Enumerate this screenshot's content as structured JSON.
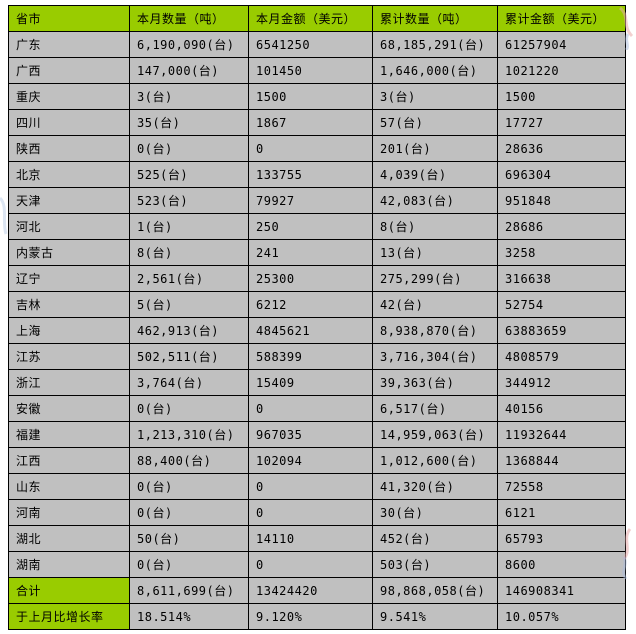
{
  "colors": {
    "header_bg": "#99cc00",
    "row_bg": "#c0c0c0",
    "border": "#000000",
    "text": "#000000"
  },
  "table": {
    "columns": [
      "省市",
      "本月数量（吨）",
      "本月金额（美元）",
      "累计数量（吨）",
      "累计金额（美元）"
    ],
    "rows": [
      [
        "广东",
        "6,190,090(台)",
        "6541250",
        "68,185,291(台)",
        "61257904"
      ],
      [
        "广西",
        "147,000(台)",
        "101450",
        "1,646,000(台)",
        "1021220"
      ],
      [
        "重庆",
        "3(台)",
        "1500",
        "3(台)",
        "1500"
      ],
      [
        "四川",
        "35(台)",
        "1867",
        "57(台)",
        "17727"
      ],
      [
        "陕西",
        "0(台)",
        "0",
        "201(台)",
        "28636"
      ],
      [
        "北京",
        "525(台)",
        "133755",
        "4,039(台)",
        "696304"
      ],
      [
        "天津",
        "523(台)",
        "79927",
        "42,083(台)",
        "951848"
      ],
      [
        "河北",
        "1(台)",
        "250",
        "8(台)",
        "28686"
      ],
      [
        "内蒙古",
        "8(台)",
        "241",
        "13(台)",
        "3258"
      ],
      [
        "辽宁",
        "2,561(台)",
        "25300",
        "275,299(台)",
        "316638"
      ],
      [
        "吉林",
        "5(台)",
        "6212",
        "42(台)",
        "52754"
      ],
      [
        "上海",
        "462,913(台)",
        "4845621",
        "8,938,870(台)",
        "63883659"
      ],
      [
        "江苏",
        "502,511(台)",
        "588399",
        "3,716,304(台)",
        "4808579"
      ],
      [
        "浙江",
        "3,764(台)",
        "15409",
        "39,363(台)",
        "344912"
      ],
      [
        "安徽",
        "0(台)",
        "0",
        "6,517(台)",
        "40156"
      ],
      [
        "福建",
        "1,213,310(台)",
        "967035",
        "14,959,063(台)",
        "11932644"
      ],
      [
        "江西",
        "88,400(台)",
        "102094",
        "1,012,600(台)",
        "1368844"
      ],
      [
        "山东",
        "0(台)",
        "0",
        "41,320(台)",
        "72558"
      ],
      [
        "河南",
        "0(台)",
        "0",
        "30(台)",
        "6121"
      ],
      [
        "湖北",
        "50(台)",
        "14110",
        "452(台)",
        "65793"
      ],
      [
        "湖南",
        "0(台)",
        "0",
        "503(台)",
        "8600"
      ]
    ],
    "total_row": [
      "合计",
      "8,611,699(台)",
      "13424420",
      "98,868,058(台)",
      "146908341"
    ],
    "growth_row": [
      "于上月比增长率",
      "18.514%",
      "9.120%",
      "9.541%",
      "10.057%"
    ]
  },
  "chart_data": {
    "type": "table",
    "title": "",
    "columns": [
      "省市",
      "本月数量（吨）",
      "本月金额（美元）",
      "累计数量（吨）",
      "累计金额（美元）"
    ],
    "provinces": [
      "广东",
      "广西",
      "重庆",
      "四川",
      "陕西",
      "北京",
      "天津",
      "河北",
      "内蒙古",
      "辽宁",
      "吉林",
      "上海",
      "江苏",
      "浙江",
      "安徽",
      "福建",
      "江西",
      "山东",
      "河南",
      "湖北",
      "湖南"
    ],
    "series": [
      {
        "name": "本月数量(台)",
        "values": [
          6190090,
          147000,
          3,
          35,
          0,
          525,
          523,
          1,
          8,
          2561,
          5,
          462913,
          502511,
          3764,
          0,
          1213310,
          88400,
          0,
          0,
          50,
          0
        ]
      },
      {
        "name": "本月金额(美元)",
        "values": [
          6541250,
          101450,
          1500,
          1867,
          0,
          133755,
          79927,
          250,
          241,
          25300,
          6212,
          4845621,
          588399,
          15409,
          0,
          967035,
          102094,
          0,
          0,
          14110,
          0
        ]
      },
      {
        "name": "累计数量(台)",
        "values": [
          68185291,
          1646000,
          3,
          57,
          201,
          4039,
          42083,
          8,
          13,
          275299,
          42,
          8938870,
          3716304,
          39363,
          6517,
          14959063,
          1012600,
          41320,
          30,
          452,
          503
        ]
      },
      {
        "name": "累计金额(美元)",
        "values": [
          61257904,
          1021220,
          1500,
          17727,
          28636,
          696304,
          951848,
          28686,
          3258,
          316638,
          52754,
          63883659,
          4808579,
          344912,
          40156,
          11932644,
          1368844,
          72558,
          6121,
          65793,
          8600
        ]
      }
    ],
    "totals": {
      "label": "合计",
      "本月数量": 8611699,
      "本月金额": 13424420,
      "累计数量": 98868058,
      "累计金额": 146908341
    },
    "growth_vs_last_month": {
      "label": "于上月比增长率",
      "本月数量": "18.514%",
      "本月金额": "9.120%",
      "累计数量": "9.541%",
      "累计金额": "10.057%"
    }
  }
}
